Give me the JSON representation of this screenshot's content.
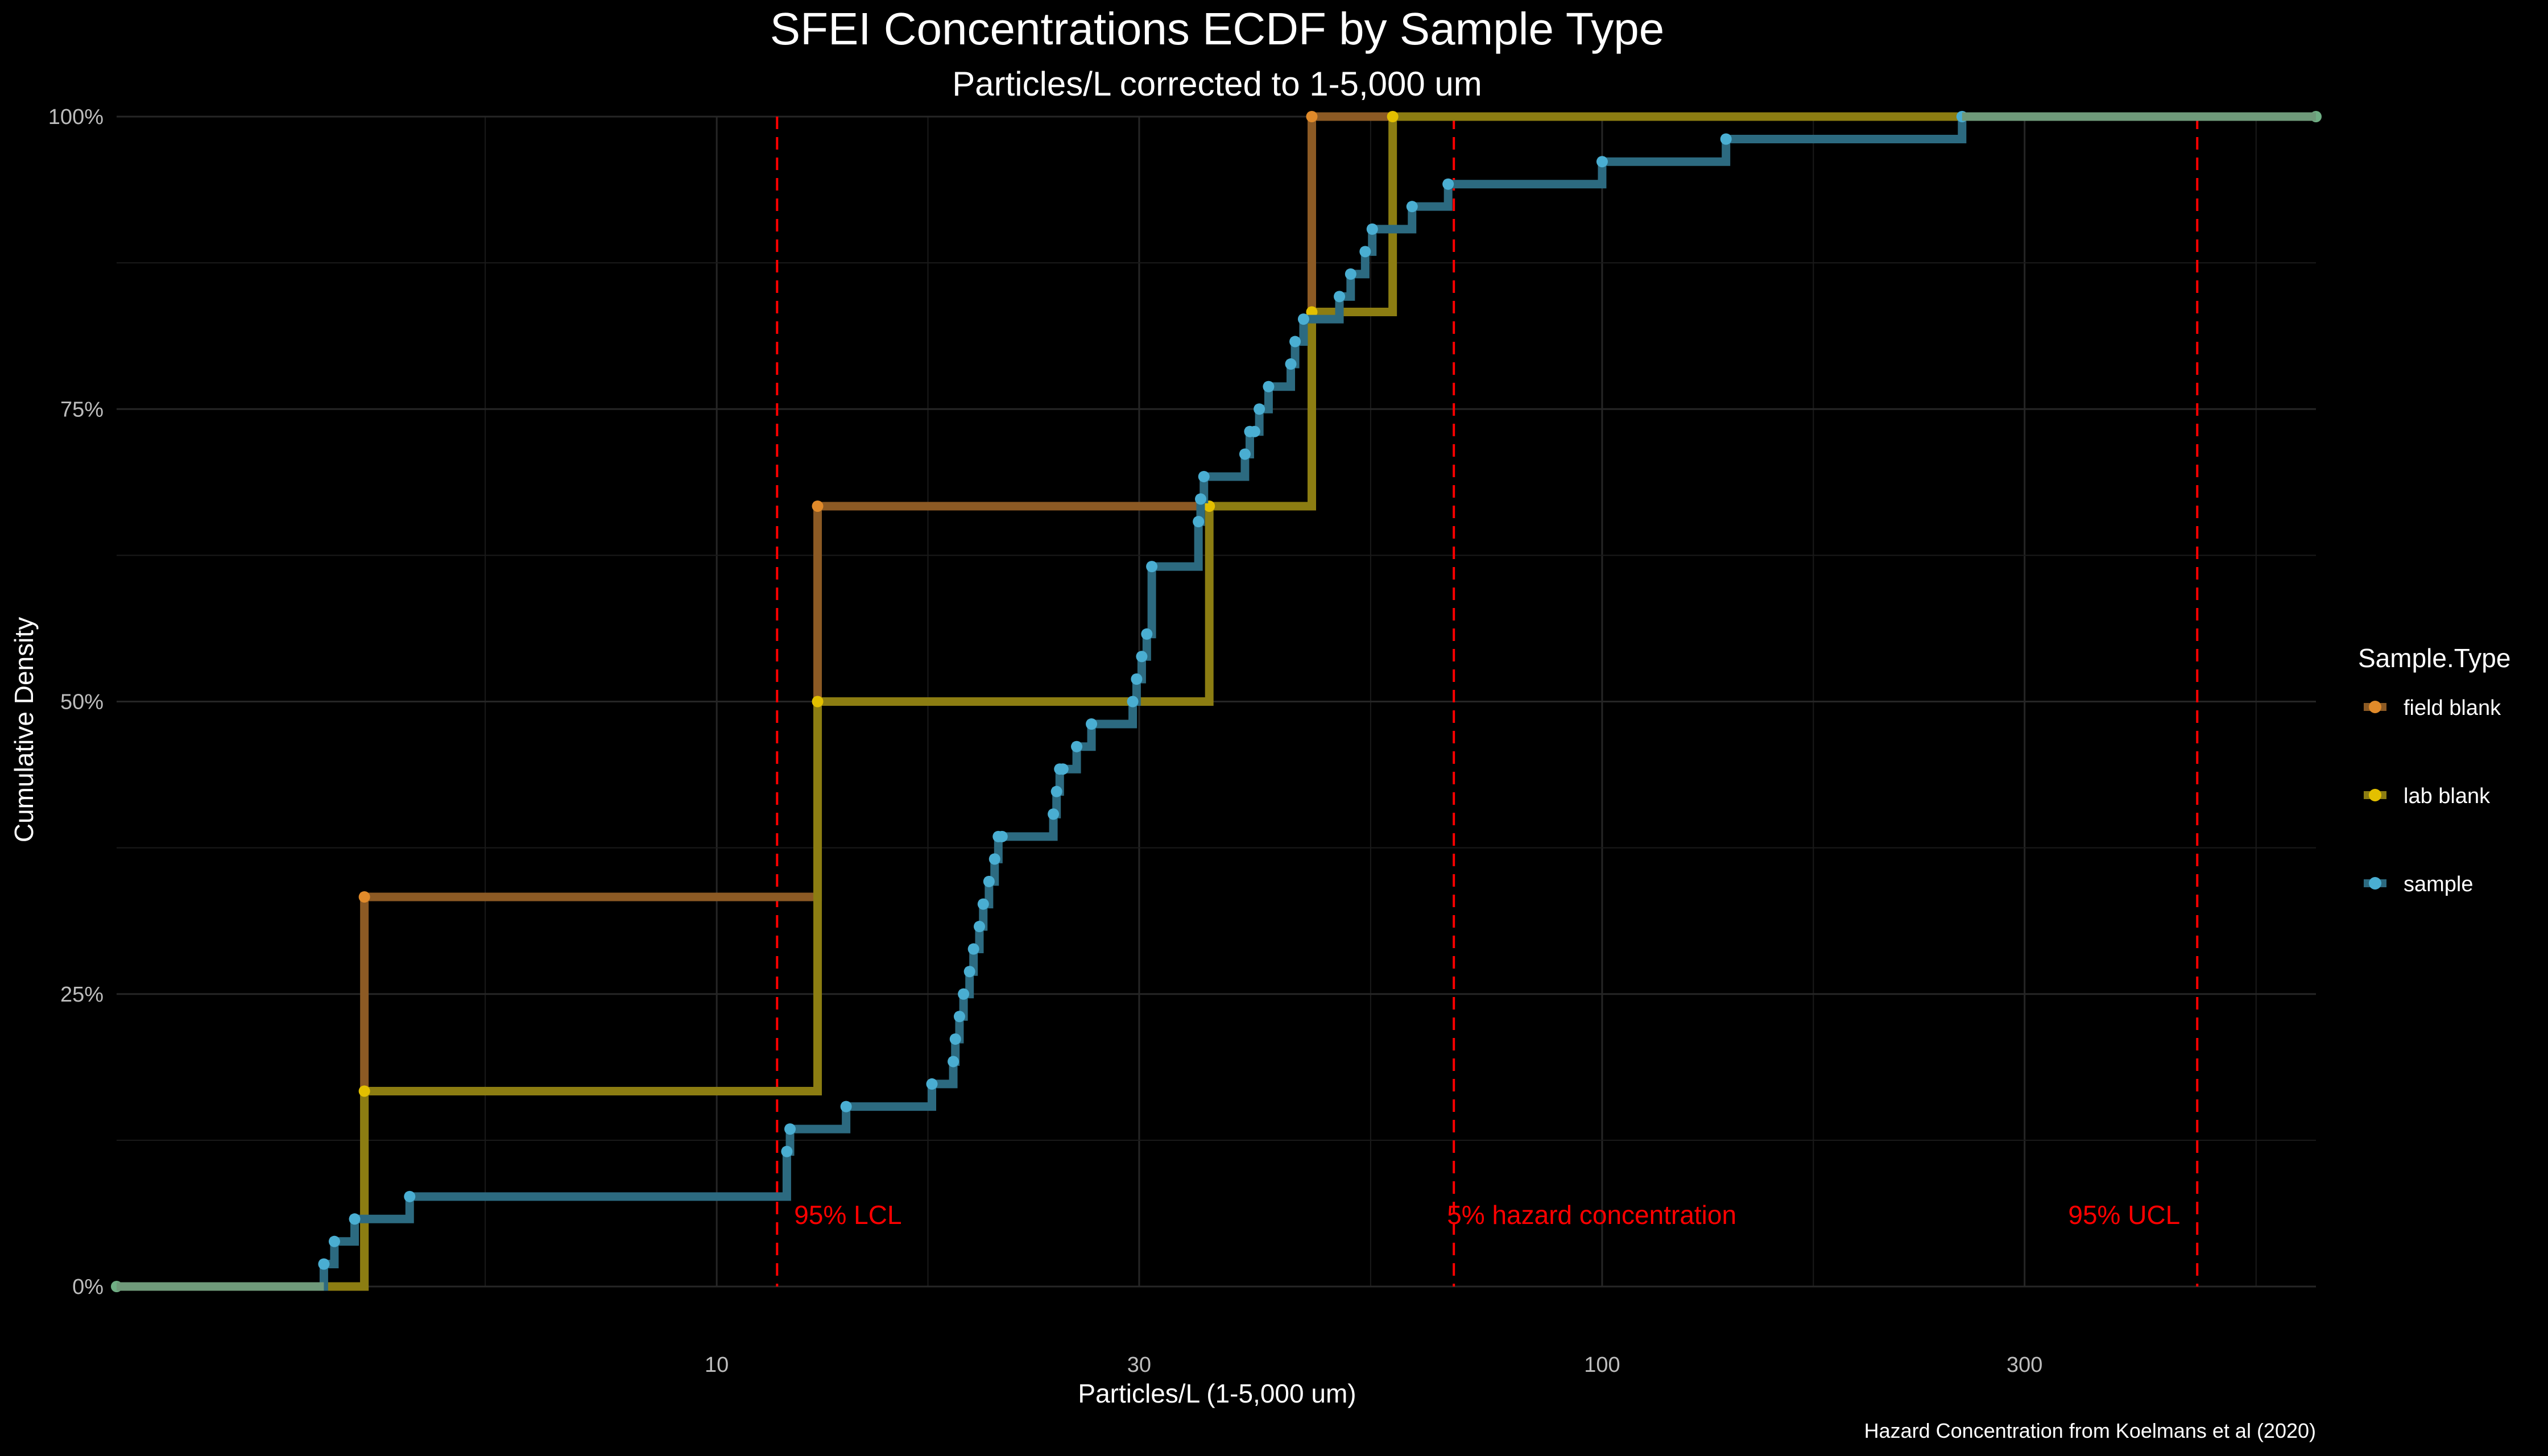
{
  "chart_data": {
    "type": "line",
    "subtype": "ecdf-step",
    "title": "SFEI Concentrations ECDF by Sample Type",
    "subtitle": "Particles/L corrected to 1-5,000 um",
    "xlabel": "Particles/L (1-5,000 um)",
    "ylabel": "Cumulative Density",
    "caption": "Hazard Concentration from Koelmans et al (2020)",
    "x_scale": "log10",
    "xlim": [
      2.1,
      640
    ],
    "ylim": [
      0,
      1
    ],
    "x_ticks": [
      10,
      30,
      100,
      300
    ],
    "x_tick_labels": [
      "10",
      "30",
      "100",
      "300"
    ],
    "y_ticks": [
      0,
      0.25,
      0.5,
      0.75,
      1.0
    ],
    "y_tick_labels": [
      "0%",
      "25%",
      "50%",
      "75%",
      "100%"
    ],
    "grid": true,
    "legend": {
      "title": "Sample.Type",
      "position": "right",
      "entries": [
        {
          "name": "field blank",
          "color": "#e08a2a"
        },
        {
          "name": "lab blank",
          "color": "#e3c000"
        },
        {
          "name": "sample",
          "color": "#4aaed2"
        }
      ]
    },
    "series": [
      {
        "name": "field blank",
        "color": "#e08a2a",
        "line_color": "#8c5a24",
        "x": [
          4.0,
          13.0,
          47.0
        ],
        "y": [
          0.333,
          0.667,
          1.0
        ]
      },
      {
        "name": "lab blank",
        "color": "#e3c000",
        "line_color": "#8c7d12",
        "x": [
          4.0,
          13.0,
          36.0,
          47.0,
          58.0
        ],
        "y": [
          0.167,
          0.5,
          0.667,
          0.833,
          1.0
        ]
      },
      {
        "name": "sample",
        "color": "#4aaed2",
        "line_color": "#2c6a80",
        "x": [
          3.6,
          3.7,
          3.9,
          4.5,
          12.0,
          12.1,
          14.0,
          17.5,
          18.5,
          18.6,
          18.8,
          19.0,
          19.3,
          19.5,
          19.8,
          20.0,
          20.3,
          20.6,
          20.8,
          21.0,
          24.0,
          24.2,
          24.4,
          24.6,
          25.5,
          26.5,
          29.5,
          29.8,
          30.2,
          30.6,
          31.0,
          35.0,
          35.2,
          35.5,
          39.5,
          40.0,
          40.5,
          41.0,
          42.0,
          44.5,
          45.0,
          46.0,
          50.5,
          52.0,
          54.0,
          55.0,
          61.0,
          67.0,
          100.0,
          138.0,
          255.0,
          640.0
        ],
        "y": [
          0.0192,
          0.0385,
          0.0577,
          0.0769,
          0.1154,
          0.1346,
          0.1538,
          0.1731,
          0.1923,
          0.2115,
          0.2308,
          0.25,
          0.2692,
          0.2885,
          0.3077,
          0.3269,
          0.3462,
          0.3654,
          0.3846,
          0.3846,
          0.4038,
          0.4231,
          0.4423,
          0.4423,
          0.4615,
          0.4808,
          0.5,
          0.5192,
          0.5385,
          0.5577,
          0.6154,
          0.6538,
          0.6731,
          0.6923,
          0.7115,
          0.7308,
          0.7308,
          0.75,
          0.7692,
          0.7885,
          0.8077,
          0.8269,
          0.8462,
          0.8654,
          0.8846,
          0.9038,
          0.9231,
          0.9423,
          0.9615,
          0.9808,
          1.0,
          1.0
        ]
      }
    ],
    "reference_lines": [
      {
        "x": 11.7,
        "label": "95% LCL",
        "color": "#ff0000",
        "style": "dashed"
      },
      {
        "x": 68.0,
        "label": "5% hazard concentration",
        "color": "#ff0000",
        "style": "dashed"
      },
      {
        "x": 470.0,
        "label": "95% UCL",
        "color": "#ff0000",
        "style": "dashed"
      }
    ]
  }
}
